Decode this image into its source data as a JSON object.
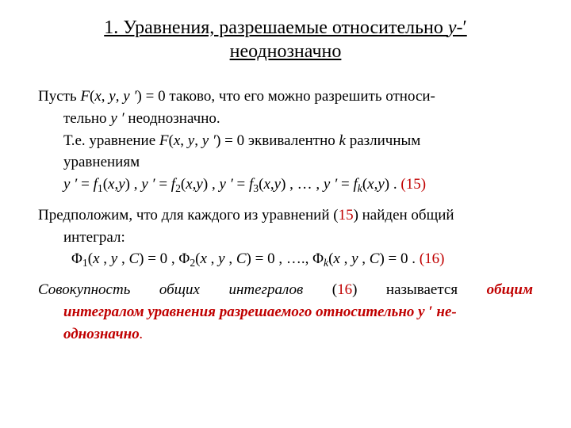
{
  "colors": {
    "text": "#000000",
    "accent": "#c00000",
    "background": "#ffffff"
  },
  "typography": {
    "family": "Times New Roman",
    "title_fontsize": 24,
    "body_fontsize": 19
  },
  "title": {
    "line1_a": "1.  Уравнения, разрешаемые относительно  ",
    "line1_b": "y",
    "line1_c": "-′",
    "line2": "неоднозначно"
  },
  "p1": {
    "a": "Пусть   ",
    "F": "F",
    "open": "(",
    "x": "x",
    "c1": ", ",
    "y": "y",
    "c2": ", ",
    "yp": "y ′",
    "close_eq": ") = 0   таково, что его можно разрешить относи-",
    "line2a": "тельно  ",
    "line2b": "y ′",
    "line2c": "  неоднозначно."
  },
  "p2": {
    "a": "Т.е. уравнение   ",
    "F": "F",
    "open": "(",
    "x": "x",
    "c1": ", ",
    "y": "y",
    "c2": ", ",
    "yp": "y ′",
    "close_eq": ") = 0  эквивалентно  ",
    "k": "k",
    "tail": "   различным",
    "line2": "уравнениям"
  },
  "eq15": {
    "y": "y ′",
    "eq": " = ",
    "f": "f",
    "sub1": "1",
    "args": "(",
    "x": "x",
    "comma": ",",
    "yvar": "y",
    "close": ")",
    "sep": " ,   ",
    "sub2": "2",
    "sub3": "3",
    "dots": "… ,   ",
    "subk": "k",
    "dot": " .  ",
    "ref_open": "(",
    "ref_num": "15",
    "ref_close": ")"
  },
  "p3": {
    "a": "Предположим, что для каждого из уравнений (",
    "num": "15",
    "b": ") найден общий",
    "line2": "интеграл:"
  },
  "eq16": {
    "Phi": "Φ",
    "sub1": "1",
    "open": "(",
    "x": "x ",
    "c1": ", ",
    "y": "y ",
    "c2": ", ",
    "C": "C",
    "close_eq": ") = 0 ,   ",
    "sub2": "2",
    "dots": "….,   ",
    "subk": "k",
    "close_eq_last": ") = 0 .     ",
    "ref_open": "(",
    "ref_num": "16",
    "ref_close": ")"
  },
  "p4": {
    "a": "Совокупность общих интегралов ",
    "open": " (",
    "num": "16",
    "close": ")   называется ",
    "term1": "общим",
    "term2": "интегралом уравнения разрешаемого относительно y ′ не-",
    "term3": "однозначно",
    "dot": "."
  }
}
